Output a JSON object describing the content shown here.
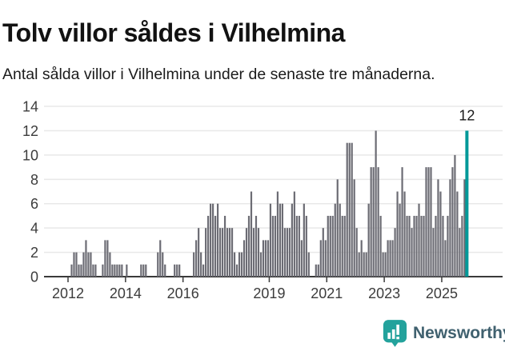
{
  "header": {
    "title": "Tolv villor såldes i Vilhelmina",
    "subtitle": "Antal sålda villor i Vilhelmina under de senaste tre månaderna."
  },
  "chart_data": {
    "type": "bar",
    "title": "Tolv villor såldes i Vilhelmina",
    "subtitle": "Antal sålda villor i Vilhelmina under de senaste tre månaderna.",
    "x_start": "2012-01",
    "x_freq": "monthly",
    "x_tick_labels": [
      "2012",
      "2014",
      "2016",
      "2019",
      "2021",
      "2023",
      "2025"
    ],
    "y_ticks": [
      0,
      2,
      4,
      6,
      8,
      10,
      12,
      14
    ],
    "ylim": [
      0,
      14
    ],
    "grid": true,
    "values": [
      0,
      1,
      2,
      2,
      1,
      1,
      2,
      3,
      2,
      2,
      1,
      1,
      0,
      0,
      1,
      3,
      3,
      2,
      1,
      1,
      1,
      1,
      1,
      0,
      1,
      0,
      0,
      0,
      0,
      0,
      1,
      1,
      1,
      0,
      0,
      0,
      0,
      2,
      3,
      2,
      1,
      0,
      0,
      0,
      1,
      1,
      1,
      0,
      0,
      0,
      0,
      0,
      2,
      3,
      4,
      2,
      1,
      4,
      5,
      6,
      6,
      5,
      6,
      4,
      4,
      5,
      4,
      4,
      4,
      2,
      1,
      2,
      2,
      3,
      4,
      5,
      7,
      4,
      5,
      4,
      2,
      3,
      3,
      3,
      6,
      5,
      5,
      7,
      6,
      6,
      4,
      4,
      4,
      6,
      7,
      5,
      5,
      3,
      6,
      5,
      2,
      0,
      0,
      1,
      1,
      3,
      4,
      3,
      5,
      5,
      5,
      6,
      8,
      6,
      5,
      5,
      11,
      11,
      11,
      8,
      4,
      2,
      3,
      2,
      2,
      6,
      9,
      9,
      12,
      9,
      5,
      2,
      2,
      3,
      3,
      3,
      4,
      7,
      6,
      9,
      7,
      5,
      5,
      4,
      5,
      5,
      6,
      5,
      5,
      9,
      9,
      9,
      4,
      5,
      8,
      7,
      5,
      3,
      5,
      8,
      9,
      10,
      7,
      4,
      5,
      8,
      12
    ],
    "highlight_last": true,
    "annotation": {
      "text": "12"
    },
    "colors": {
      "bar": "#6c6c74",
      "highlight": "#009999",
      "gridline": "#e8e8e8",
      "axis": "#3a3a3a",
      "tick_label": "#3c3c3c",
      "annotation": "#1a1a1a"
    }
  },
  "footer": {
    "brand": "Newsworthy",
    "logo_color": "#23a29c",
    "brand_text_color": "#40616f"
  }
}
